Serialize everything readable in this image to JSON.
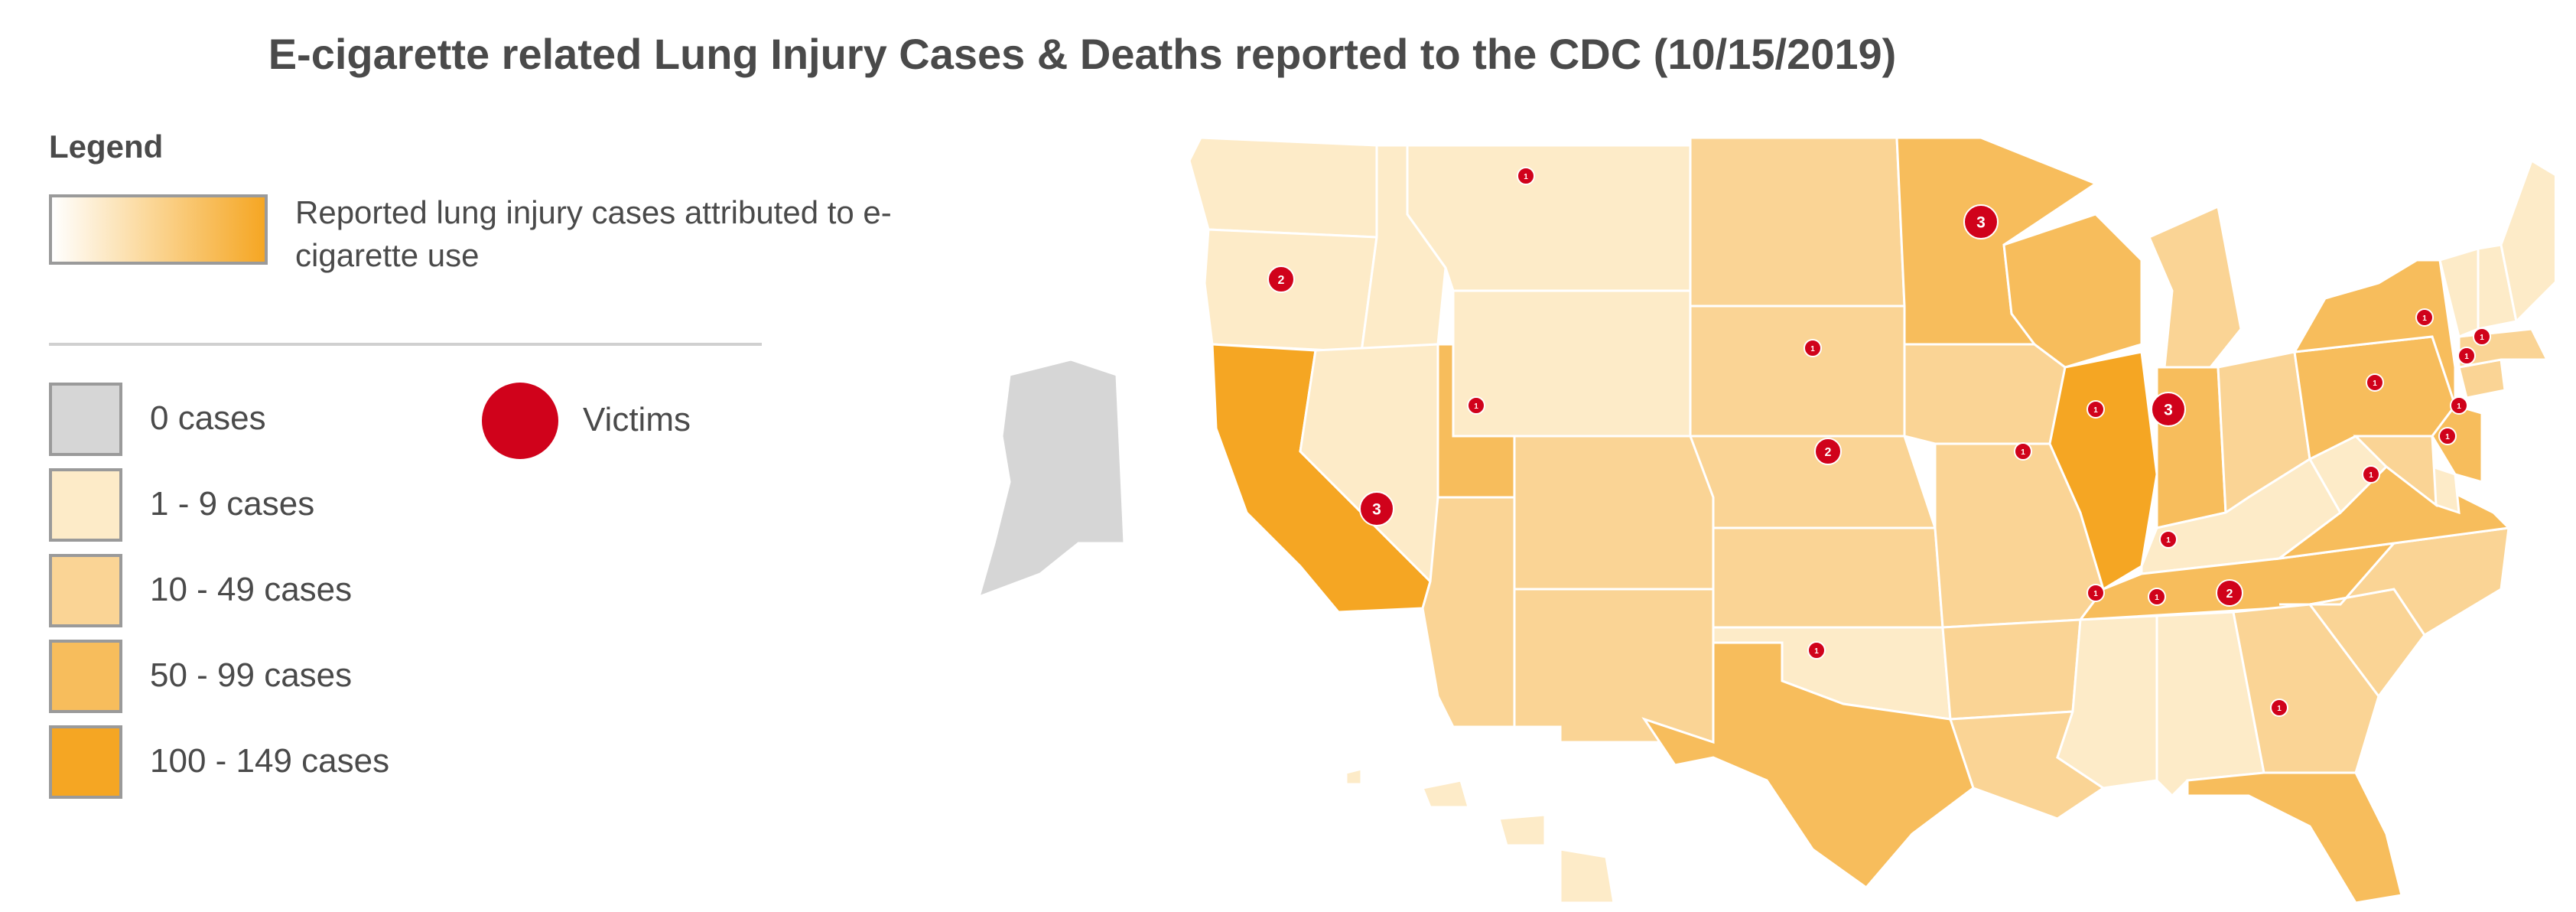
{
  "title": "E-cigarette related Lung Injury Cases & Deaths reported to the CDC (10/15/2019)",
  "legend": {
    "heading": "Legend",
    "gradient_label": "Reported lung injury cases attributed to e-cigarette use",
    "categories": [
      {
        "label": "0 cases",
        "color": "#d6d6d6"
      },
      {
        "label": "1 - 9 cases",
        "color": "#fdebc8"
      },
      {
        "label": "10 - 49 cases",
        "color": "#fad495"
      },
      {
        "label": "50 - 99 cases",
        "color": "#f7bd5c"
      },
      {
        "label": "100 - 149 cases",
        "color": "#f5a623"
      }
    ],
    "victims_label": "Victims",
    "victims_color": "#d0021b"
  },
  "victims": [
    {
      "location": "Montana",
      "count": "1"
    },
    {
      "location": "Oregon",
      "count": "2"
    },
    {
      "location": "California",
      "count": "3"
    },
    {
      "location": "Utah",
      "count": "1"
    },
    {
      "location": "Minnesota",
      "count": "3"
    },
    {
      "location": "Nebraska",
      "count": "1"
    },
    {
      "location": "Kansas",
      "count": "2"
    },
    {
      "location": "Missouri",
      "count": "1"
    },
    {
      "location": "Illinois",
      "count": "1"
    },
    {
      "location": "Indiana",
      "count": "3"
    },
    {
      "location": "Texas",
      "count": "1"
    },
    {
      "location": "Tennessee",
      "count": "1"
    },
    {
      "location": "Mississippi",
      "count": "1"
    },
    {
      "location": "Alabama",
      "count": "1"
    },
    {
      "location": "Georgia",
      "count": "2"
    },
    {
      "location": "Florida",
      "count": "1"
    },
    {
      "location": "Virginia",
      "count": "1"
    },
    {
      "location": "Pennsylvania",
      "count": "1"
    },
    {
      "location": "New York",
      "count": "1"
    },
    {
      "location": "Massachusetts",
      "count": "1"
    },
    {
      "location": "Connecticut",
      "count": "1"
    },
    {
      "location": "New Jersey",
      "count": "1"
    },
    {
      "location": "Delaware",
      "count": "1"
    }
  ]
}
